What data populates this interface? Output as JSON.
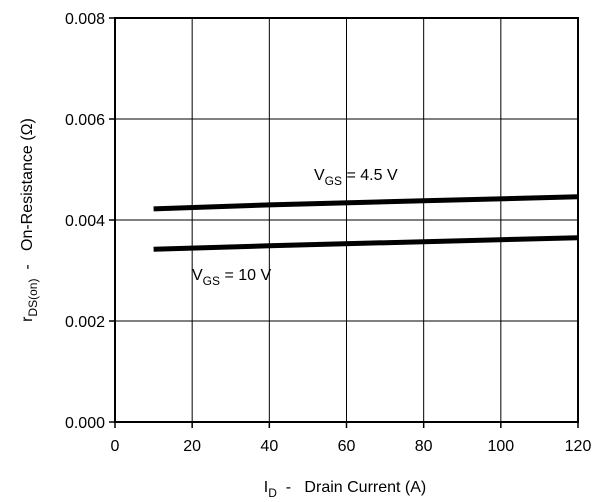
{
  "chart_data": {
    "type": "line",
    "title": "",
    "xlabel": {
      "main": "I",
      "sub": "D",
      "rest": "  -   Drain Current (A)"
    },
    "ylabel": {
      "main": "r",
      "sub": "DS(on)",
      "rest": "  -   On-Resistance (Ω)"
    },
    "xlim": [
      0,
      120
    ],
    "ylim": [
      0,
      0.008
    ],
    "xticks": [
      0,
      20,
      40,
      60,
      80,
      100,
      120
    ],
    "xtick_labels": [
      "0",
      "20",
      "40",
      "60",
      "80",
      "100",
      "120"
    ],
    "yticks": [
      0,
      0.002,
      0.004,
      0.006,
      0.008
    ],
    "ytick_labels": [
      "0.000",
      "0.002",
      "0.004",
      "0.006",
      "0.008"
    ],
    "grid": true,
    "series": [
      {
        "name": "VGS = 4.5 V",
        "label_main": "V",
        "label_sub": "GS",
        "label_rest": " = 4.5 V",
        "color": "#000000",
        "x": [
          10,
          40,
          80,
          120
        ],
        "y": [
          0.00422,
          0.0043,
          0.00438,
          0.00446
        ]
      },
      {
        "name": "VGS = 10 V",
        "label_main": "V",
        "label_sub": "GS",
        "label_rest": " = 10 V",
        "color": "#000000",
        "x": [
          10,
          40,
          80,
          120
        ],
        "y": [
          0.00342,
          0.00349,
          0.00357,
          0.00365
        ]
      }
    ]
  }
}
